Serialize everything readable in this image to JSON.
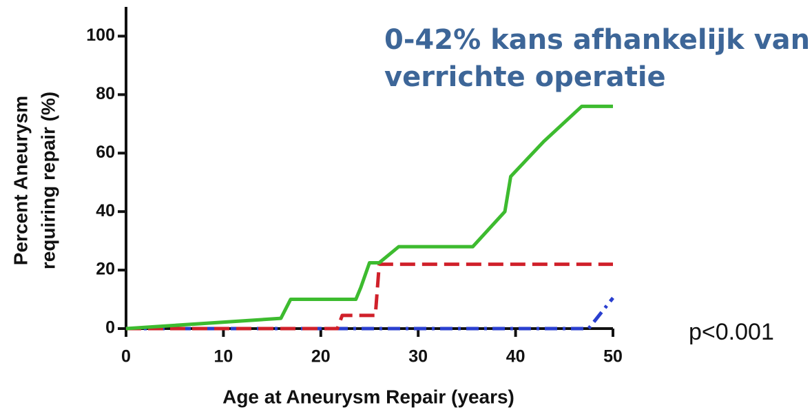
{
  "chart_data": {
    "type": "line",
    "xlabel": "Age at Aneurysm Repair (years)",
    "ylabel": [
      "Percent Aneurysm",
      "requiring repair (%)"
    ],
    "annotations": [
      "0-42% kans afhankelijk van",
      "verrichte operatie",
      "p<0.001"
    ],
    "xlim": [
      0,
      50
    ],
    "xticks": [
      0,
      10,
      20,
      30,
      40,
      50
    ],
    "ylim": [
      0,
      110
    ],
    "yticks": [
      0,
      20,
      40,
      60,
      80,
      100
    ],
    "series": [
      {
        "color": "#3dbb2f",
        "dash": "solid",
        "x": [
          0,
          15.9,
          16.9,
          23.6,
          24.1,
          25,
          26,
          28,
          35.6,
          38.9,
          39.5,
          42.9,
          46.8,
          50
        ],
        "values": [
          0,
          3.5,
          10,
          10,
          14,
          22.5,
          22.5,
          28,
          28,
          40,
          52,
          64,
          76,
          76
        ]
      },
      {
        "color": "#d0202a",
        "dash": "dashed",
        "x": [
          0,
          21.7,
          22.2,
          25.6,
          26,
          50
        ],
        "values": [
          0,
          0,
          4.5,
          4.5,
          22,
          22
        ]
      },
      {
        "color": "#2a3fcf",
        "dash": "dashdot",
        "x": [
          0,
          47.5,
          50
        ],
        "values": [
          0,
          0,
          10.5
        ]
      }
    ]
  }
}
